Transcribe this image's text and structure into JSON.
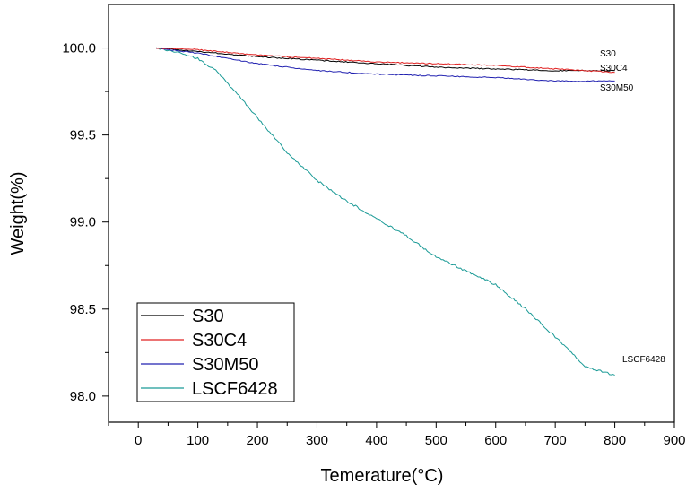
{
  "chart_data": {
    "type": "line",
    "xlabel": "Temerature(°C)",
    "ylabel": "Weight(%)",
    "xlim": [
      -50,
      900
    ],
    "ylim": [
      97.85,
      100.25
    ],
    "xticks": [
      0,
      100,
      200,
      300,
      400,
      500,
      600,
      700,
      800,
      900
    ],
    "xtick_labels": [
      "0",
      "100",
      "200",
      "300",
      "400",
      "500",
      "600",
      "700",
      "800",
      "900"
    ],
    "yticks": [
      98.0,
      98.5,
      99.0,
      99.5,
      100.0
    ],
    "ytick_labels": [
      "98.0",
      "98.5",
      "99.0",
      "99.5",
      "100.0"
    ],
    "grid": false,
    "legend_position": "bottom-left",
    "series": [
      {
        "name": "S30",
        "color": "#000000",
        "end_label": "S30",
        "x": [
          30,
          100,
          200,
          300,
          400,
          500,
          600,
          700,
          800
        ],
        "y": [
          100.0,
          99.98,
          99.95,
          99.93,
          99.91,
          99.89,
          99.88,
          99.87,
          99.87
        ]
      },
      {
        "name": "S30C4",
        "color": "#e02020",
        "end_label": "S30C4",
        "x": [
          30,
          100,
          200,
          300,
          400,
          500,
          600,
          700,
          800
        ],
        "y": [
          100.0,
          99.99,
          99.96,
          99.94,
          99.92,
          99.91,
          99.9,
          99.88,
          99.86
        ]
      },
      {
        "name": "S30M50",
        "color": "#2020b0",
        "end_label": "S30M50",
        "x": [
          30,
          100,
          200,
          300,
          400,
          500,
          600,
          700,
          800
        ],
        "y": [
          100.0,
          99.97,
          99.91,
          99.87,
          99.85,
          99.84,
          99.83,
          99.81,
          99.81
        ]
      },
      {
        "name": "LSCF6428",
        "color": "#1a9a96",
        "end_label": "LSCF6428",
        "x": [
          30,
          60,
          100,
          130,
          160,
          200,
          250,
          300,
          350,
          400,
          450,
          500,
          550,
          600,
          650,
          700,
          750,
          770,
          800
        ],
        "y": [
          100.0,
          99.98,
          99.94,
          99.87,
          99.76,
          99.6,
          99.4,
          99.24,
          99.12,
          99.02,
          98.92,
          98.8,
          98.72,
          98.64,
          98.5,
          98.34,
          98.17,
          98.15,
          98.12
        ]
      }
    ]
  }
}
